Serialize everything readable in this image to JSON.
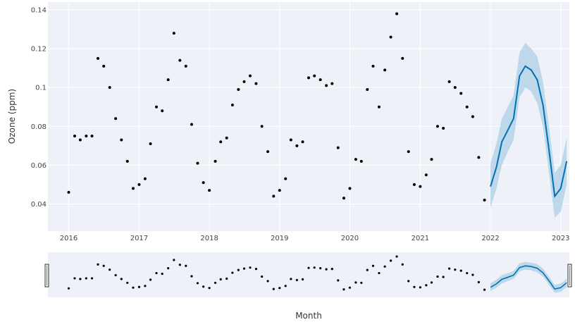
{
  "chart_data": {
    "type": "line",
    "title": "",
    "xlabel": "Month",
    "ylabel": "Ozone (ppm)",
    "x_range": [
      "2015-09-15",
      "2023-02-15"
    ],
    "ylim": [
      0.026,
      0.144
    ],
    "x_tick_labels": [
      "2016",
      "2017",
      "2018",
      "2019",
      "2020",
      "2021",
      "2022",
      "2023"
    ],
    "y_tick_labels": [
      "0.04",
      "0.06",
      "0.08",
      "0.1",
      "0.12",
      "0.14"
    ],
    "grid": true,
    "legend": false,
    "colors": {
      "plot_background": "#eef1f7",
      "grid": "#ffffff",
      "observed_points": "#000000",
      "forecast_line": "#0072b2",
      "uncertainty_band": "#b3d3e8"
    },
    "series": [
      {
        "type": "scatter",
        "x": [
          "2016-01",
          "2016-02",
          "2016-03",
          "2016-04",
          "2016-05",
          "2016-06",
          "2016-07",
          "2016-08",
          "2016-09",
          "2016-10",
          "2016-11",
          "2016-12",
          "2017-01",
          "2017-02",
          "2017-03",
          "2017-04",
          "2017-05",
          "2017-06",
          "2017-07",
          "2017-08",
          "2017-09",
          "2017-10",
          "2017-11",
          "2017-12",
          "2018-01",
          "2018-02",
          "2018-03",
          "2018-04",
          "2018-05",
          "2018-06",
          "2018-07",
          "2018-08",
          "2018-09",
          "2018-10",
          "2018-11",
          "2018-12",
          "2019-01",
          "2019-02",
          "2019-03",
          "2019-04",
          "2019-05",
          "2019-06",
          "2019-07",
          "2019-08",
          "2019-09",
          "2019-10",
          "2019-11",
          "2019-12",
          "2020-01",
          "2020-02",
          "2020-03",
          "2020-04",
          "2020-05",
          "2020-06",
          "2020-07",
          "2020-08",
          "2020-09",
          "2020-10",
          "2020-11",
          "2020-12",
          "2021-01",
          "2021-02",
          "2021-03",
          "2021-04",
          "2021-05",
          "2021-06",
          "2021-07",
          "2021-08",
          "2021-09",
          "2021-10",
          "2021-11",
          "2021-12"
        ],
        "values": [
          0.046,
          0.075,
          0.073,
          0.075,
          0.075,
          0.115,
          0.111,
          0.1,
          0.084,
          0.073,
          0.062,
          0.048,
          0.05,
          0.053,
          0.071,
          0.09,
          0.088,
          0.104,
          0.128,
          0.114,
          0.111,
          0.081,
          0.061,
          0.051,
          0.047,
          0.062,
          0.072,
          0.074,
          0.091,
          0.099,
          0.103,
          0.106,
          0.102,
          0.08,
          0.067,
          0.044,
          0.047,
          0.053,
          0.073,
          0.07,
          0.072,
          0.105,
          0.106,
          0.104,
          0.101,
          0.102,
          0.069,
          0.043,
          0.048,
          0.063,
          0.062,
          0.099,
          0.111,
          0.09,
          0.109,
          0.126,
          0.138,
          0.115,
          0.067,
          0.05,
          0.049,
          0.055,
          0.063,
          0.08,
          0.079,
          0.103,
          0.1,
          0.097,
          0.09,
          0.085,
          0.064,
          0.042
        ]
      },
      {
        "type": "line",
        "x": [
          "2022-01",
          "2022-02",
          "2022-03",
          "2022-04",
          "2022-05",
          "2022-06",
          "2022-07",
          "2022-08",
          "2022-09",
          "2022-10",
          "2022-11",
          "2022-12",
          "2023-01",
          "2023-02"
        ],
        "values": [
          0.049,
          0.059,
          0.072,
          0.078,
          0.084,
          0.106,
          0.111,
          0.109,
          0.104,
          0.091,
          0.068,
          0.044,
          0.048,
          0.062
        ],
        "lower": [
          0.038,
          0.048,
          0.06,
          0.067,
          0.073,
          0.095,
          0.1,
          0.098,
          0.092,
          0.08,
          0.056,
          0.033,
          0.036,
          0.05
        ],
        "upper": [
          0.061,
          0.071,
          0.084,
          0.09,
          0.096,
          0.118,
          0.123,
          0.12,
          0.116,
          0.103,
          0.08,
          0.056,
          0.06,
          0.074
        ]
      }
    ]
  }
}
